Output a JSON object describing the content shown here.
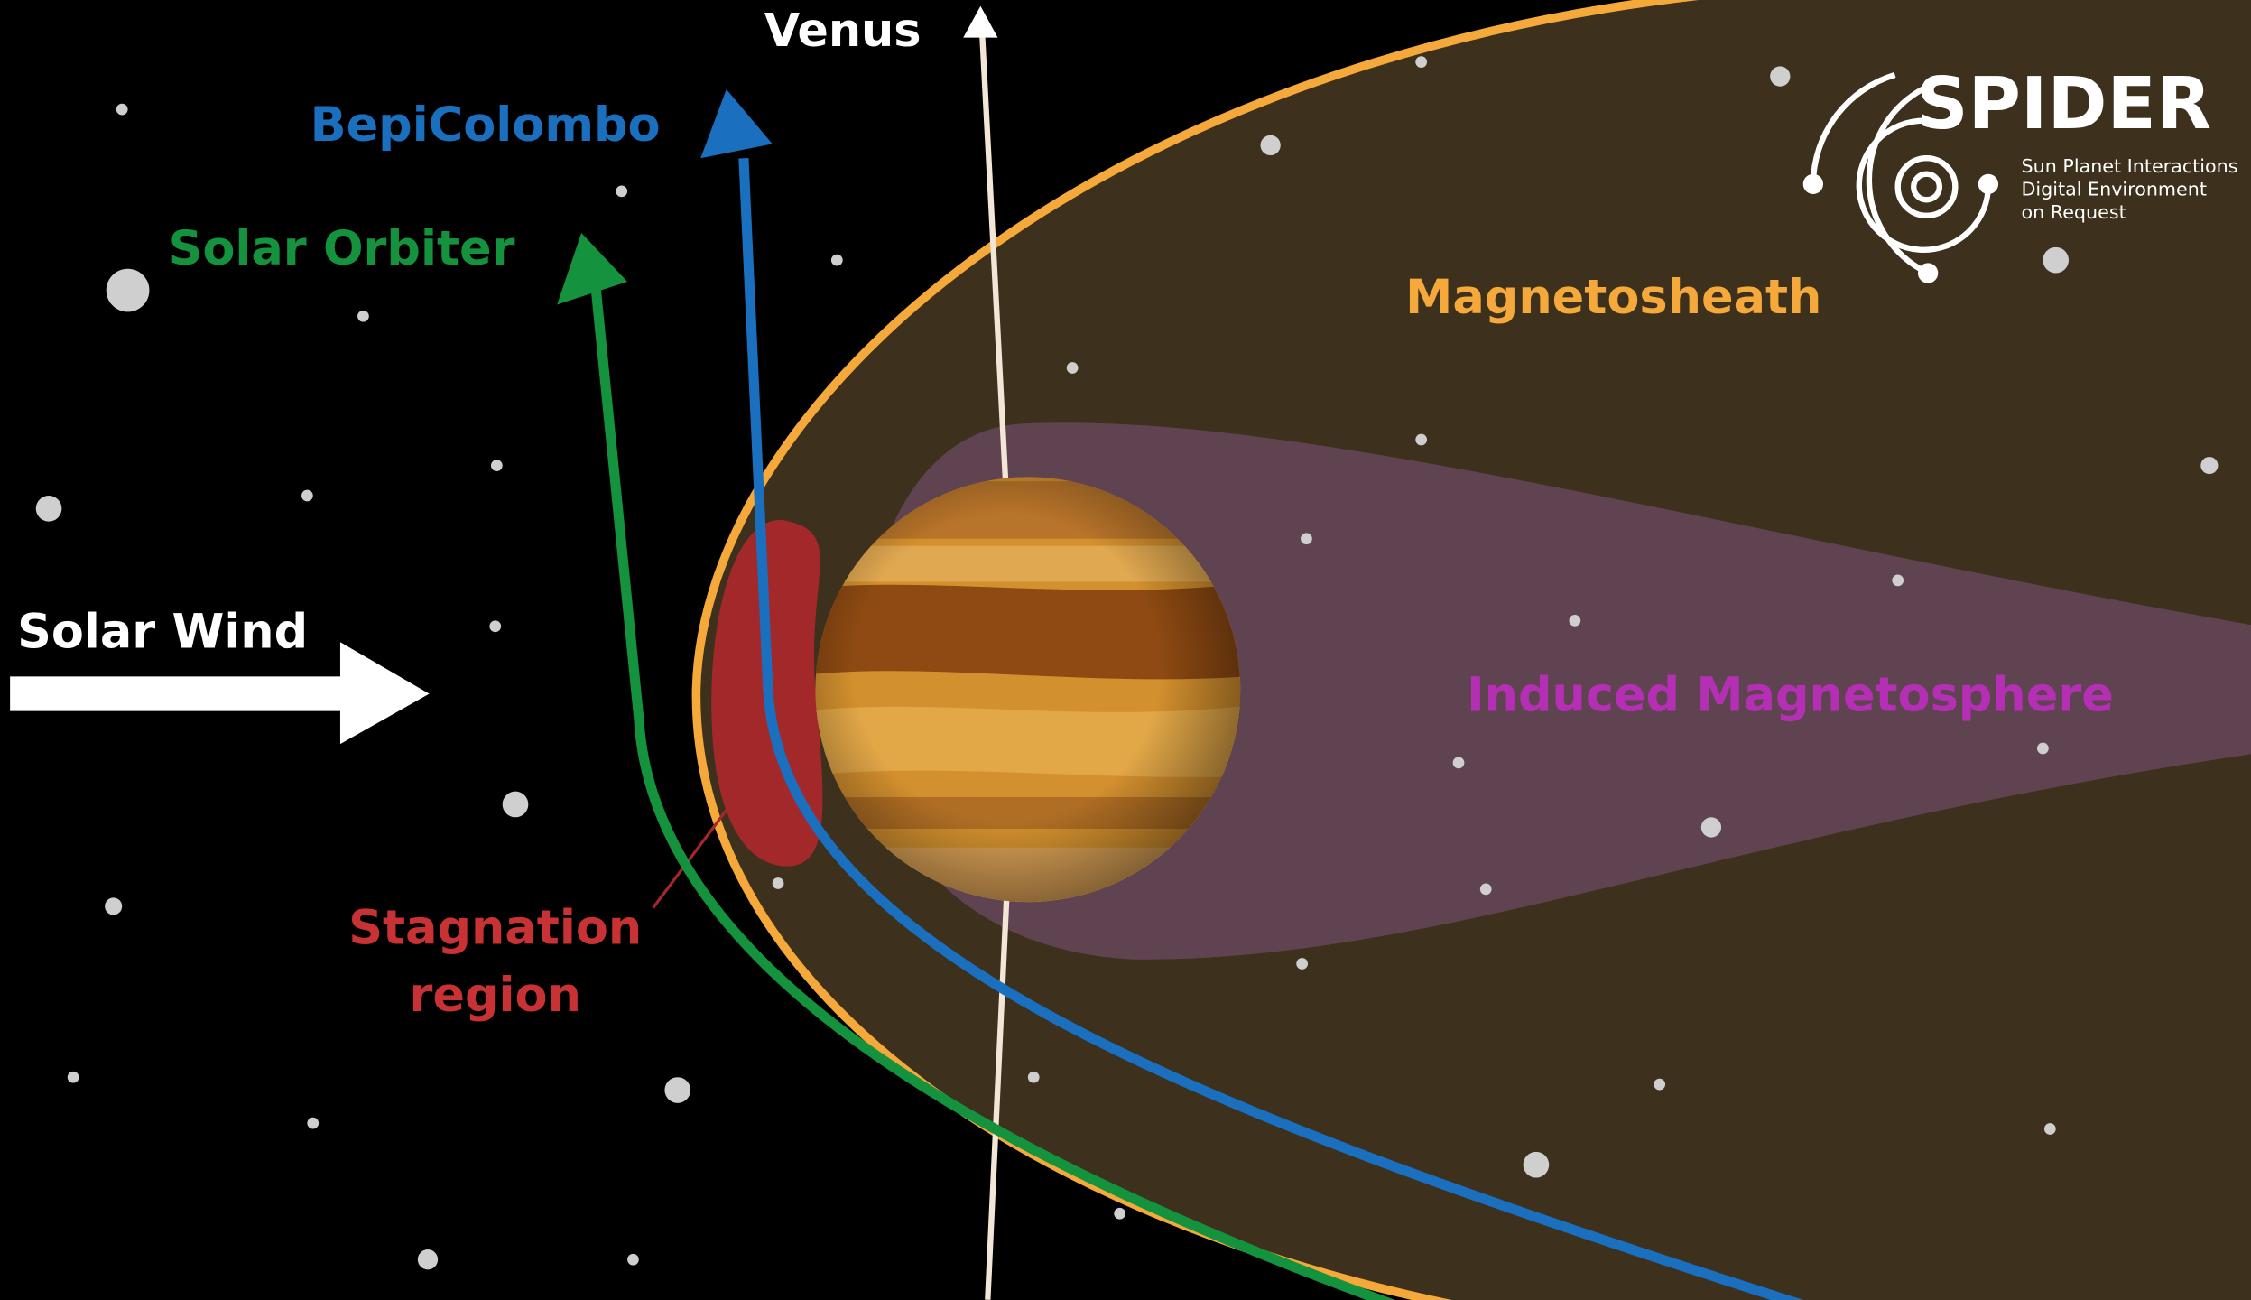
{
  "labels": {
    "venus": "Venus",
    "bepicolombo": "BepiColombo",
    "solar_orbiter": "Solar Orbiter",
    "magnetosheath": "Magnetosheath",
    "solar_wind": "Solar Wind",
    "induced_magnetosphere": "Induced Magnetosphere",
    "stagnation_region": [
      "Stagnation",
      "region"
    ]
  },
  "logo": {
    "name": "SPIDER",
    "tagline": [
      "Sun Planet Interactions",
      "Digital Environment",
      "on Request"
    ]
  }
}
